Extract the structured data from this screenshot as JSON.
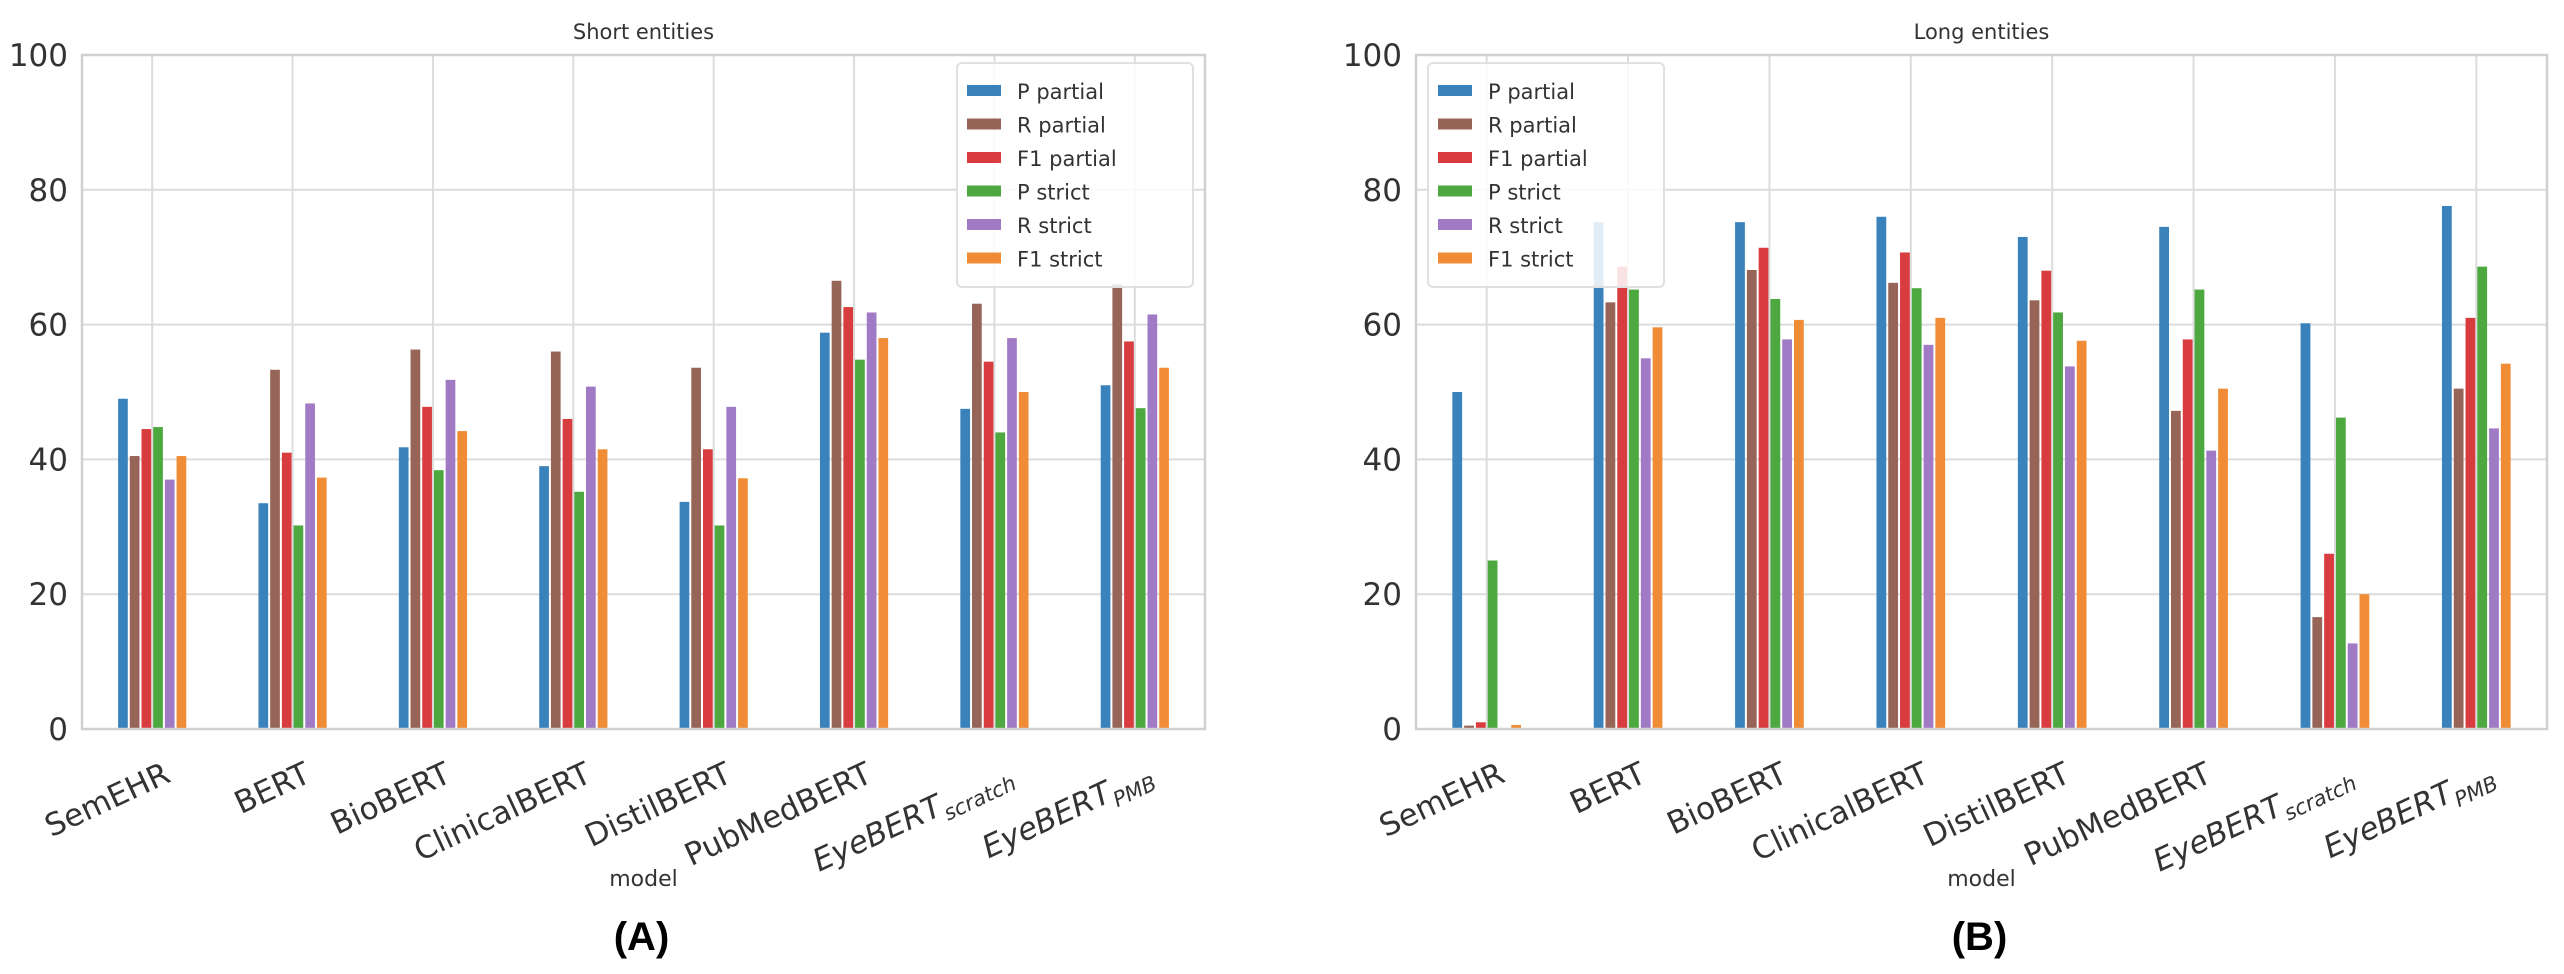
{
  "series_names": [
    "P partial",
    "R partial",
    "F1 partial",
    "P strict",
    "R strict",
    "F1 strict"
  ],
  "colors": [
    "#3a82bb",
    "#976458",
    "#d83c3f",
    "#4ca83f",
    "#a07ac4",
    "#f08c36"
  ],
  "categories": [
    {
      "main": "SemEHR",
      "sub": ""
    },
    {
      "main": "BERT",
      "sub": ""
    },
    {
      "main": "BioBERT",
      "sub": ""
    },
    {
      "main": "ClinicalBERT",
      "sub": ""
    },
    {
      "main": "DistilBERT",
      "sub": ""
    },
    {
      "main": "PubMedBERT",
      "sub": ""
    },
    {
      "main": "EyeBERT",
      "sub": "scratch"
    },
    {
      "main": "EyeBERT",
      "sub": "PMB"
    }
  ],
  "chart_data": [
    {
      "type": "bar",
      "title": "Short entities",
      "xlabel": "model",
      "ylabel": "",
      "panel": "(A)",
      "ylim": [
        0,
        100
      ],
      "yticks": [
        0,
        20,
        40,
        60,
        80,
        100
      ],
      "grid": true,
      "legend": "top-right",
      "series": [
        {
          "name": "P partial",
          "values": [
            49.0,
            33.5,
            41.8,
            39.0,
            33.7,
            58.8,
            47.5,
            51.0
          ]
        },
        {
          "name": "R partial",
          "values": [
            40.5,
            53.3,
            56.3,
            56.0,
            53.6,
            66.5,
            63.1,
            66.0
          ]
        },
        {
          "name": "F1 partial",
          "values": [
            44.5,
            41.0,
            47.8,
            46.0,
            41.5,
            62.6,
            54.5,
            57.5
          ]
        },
        {
          "name": "P strict",
          "values": [
            44.8,
            30.2,
            38.4,
            35.2,
            30.2,
            54.8,
            44.0,
            47.6
          ]
        },
        {
          "name": "R strict",
          "values": [
            37.0,
            48.3,
            51.8,
            50.8,
            47.8,
            61.8,
            58.0,
            61.5
          ]
        },
        {
          "name": "F1 strict",
          "values": [
            40.5,
            37.3,
            44.2,
            41.5,
            37.2,
            58.0,
            50.0,
            53.6
          ]
        }
      ]
    },
    {
      "type": "bar",
      "title": "Long entities",
      "xlabel": "model",
      "ylabel": "",
      "panel": "(B)",
      "ylim": [
        0,
        100
      ],
      "yticks": [
        0,
        20,
        40,
        60,
        80,
        100
      ],
      "grid": true,
      "legend": "top-left",
      "series": [
        {
          "name": "P partial",
          "values": [
            50.0,
            75.2,
            75.2,
            76.0,
            73.0,
            74.5,
            60.2,
            77.6
          ]
        },
        {
          "name": "R partial",
          "values": [
            0.5,
            63.3,
            68.1,
            66.2,
            63.6,
            47.2,
            16.6,
            50.5
          ]
        },
        {
          "name": "F1 partial",
          "values": [
            1.0,
            68.6,
            71.4,
            70.7,
            68.0,
            57.8,
            26.0,
            61.0
          ]
        },
        {
          "name": "P strict",
          "values": [
            25.0,
            65.2,
            63.8,
            65.4,
            61.8,
            65.2,
            46.2,
            68.6
          ]
        },
        {
          "name": "R strict",
          "values": [
            0.0,
            55.0,
            57.8,
            57.0,
            53.8,
            41.3,
            12.7,
            44.6
          ]
        },
        {
          "name": "F1 strict",
          "values": [
            0.6,
            59.6,
            60.7,
            61.0,
            57.6,
            50.5,
            20.0,
            54.2
          ]
        }
      ]
    }
  ]
}
